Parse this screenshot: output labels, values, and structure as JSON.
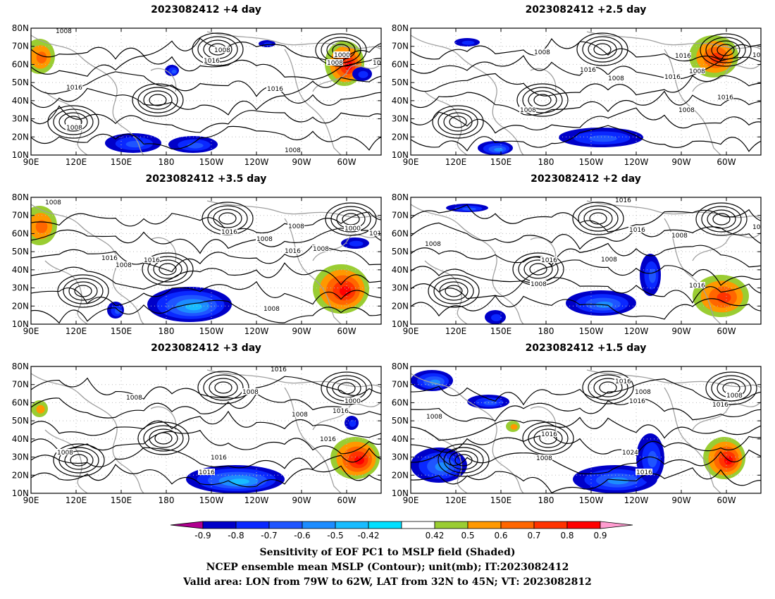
{
  "panels": [
    {
      "title": "2023082412 +4 day"
    },
    {
      "title": "2023082412 +2.5 day"
    },
    {
      "title": "2023082412 +3.5 day"
    },
    {
      "title": "2023082412 +2 day"
    },
    {
      "title": "2023082412 +3 day"
    },
    {
      "title": "2023082412 +1.5 day"
    }
  ],
  "axes": {
    "lat_labels": [
      "80N",
      "70N",
      "60N",
      "50N",
      "40N",
      "30N",
      "20N",
      "10N"
    ],
    "lon_labels": [
      "90E",
      "120E",
      "150E",
      "180",
      "150W",
      "120W",
      "90W",
      "60W"
    ]
  },
  "contour_labels": [
    "1008",
    "1016",
    "1000",
    "1024"
  ],
  "colorbar": {
    "ticks": [
      "-0.9",
      "-0.8",
      "-0.7",
      "-0.6",
      "-0.5",
      "-0.42",
      "0.42",
      "0.5",
      "0.6",
      "0.7",
      "0.8",
      "0.9"
    ],
    "colors": [
      "#b0008f",
      "#0000c8",
      "#0a28ff",
      "#1f55ff",
      "#1c8cff",
      "#18bcff",
      "#00e0ff",
      "#ffffff",
      "#9acd32",
      "#ff9800",
      "#ff6600",
      "#ff3300",
      "#ff0000",
      "#ff9cd0"
    ]
  },
  "footer": {
    "line1": "Sensitivity of EOF PC1 to MSLP field (Shaded)",
    "line2": "NCEP ensemble mean MSLP (Contour); unit(mb); IT:2023082412",
    "line3": "Valid area: LON from 79W to 62W, LAT from 32N to 45N; VT: 2023082812"
  }
}
